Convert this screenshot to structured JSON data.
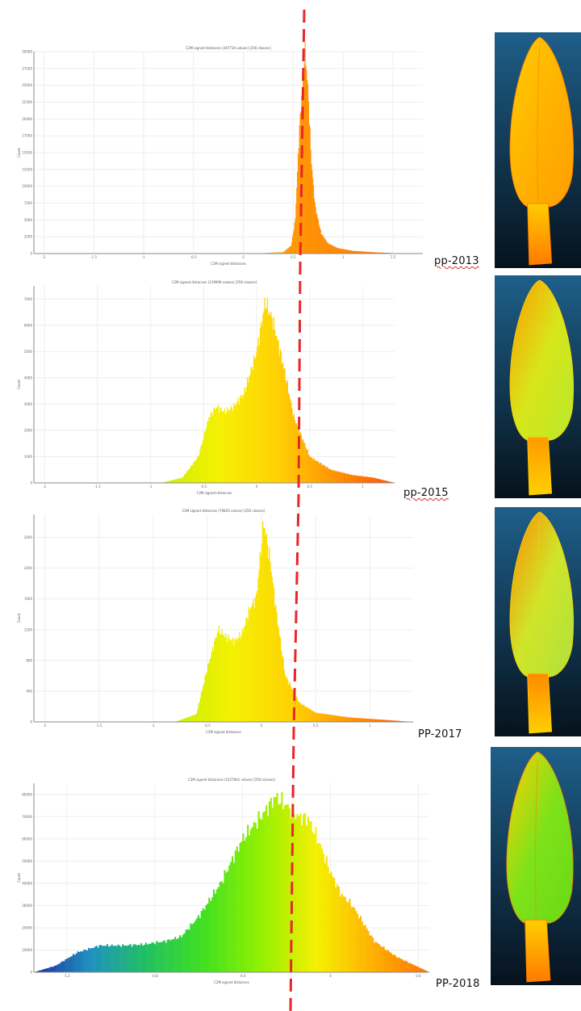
{
  "colors": {
    "leaf_bg_top": "#1e5f8a",
    "leaf_bg_bottom": "#06121c",
    "reference_line": "#e8262a"
  },
  "panels": [
    {
      "label": "pp-2013",
      "leaf_palette": [
        "#ffb300",
        "#ff9e00",
        "#ffcc00",
        "#ff7a00"
      ],
      "chart_data": {
        "type": "bar",
        "title": "C2M signed distances (347734 values) [256 classes]",
        "xlabel": "C2M signed distances",
        "ylabel": "Count",
        "xlim": [
          -2.1,
          1.8
        ],
        "ylim": [
          0,
          30000
        ],
        "xticks": [
          -2,
          -1.5,
          -1,
          -0.5,
          0,
          0.5,
          1,
          1.5
        ],
        "xtick_labels": [
          "-2",
          "-1.5",
          "-1",
          "-0.5",
          "0",
          "0.5",
          "1",
          "1.5"
        ],
        "yticks": [
          0,
          2500,
          5000,
          7500,
          10000,
          12500,
          15000,
          17500,
          20000,
          22500,
          25000,
          27500,
          30000
        ],
        "ytick_labels": [
          "0",
          "2500",
          "5000",
          "7500",
          "10000",
          "12500",
          "15000",
          "17500",
          "20000",
          "22500",
          "25000",
          "27500",
          "30000"
        ],
        "color_range": [
          -2.1,
          1.8
        ],
        "colorscale": [
          "#ffd400",
          "#ffc400",
          "#ffb000",
          "#ff8a00",
          "#ff6a00"
        ],
        "profile": {
          "x": [
            -0.2,
            0.1,
            0.4,
            0.48,
            0.52,
            0.56,
            0.6,
            0.62,
            0.65,
            0.68,
            0.72,
            0.78,
            0.85,
            0.95,
            1.1,
            1.3,
            1.6
          ],
          "y": [
            0,
            0,
            200,
            1200,
            5000,
            18000,
            27000,
            30000,
            24000,
            14000,
            7000,
            3000,
            1500,
            800,
            400,
            200,
            0
          ]
        }
      }
    },
    {
      "label": "pp-2015",
      "leaf_palette": [
        "#d7e61a",
        "#b8e82a",
        "#ff9a00",
        "#ffcf00"
      ],
      "chart_data": {
        "type": "bar",
        "title": "C2M signed distances (219909 values) [256 classes]",
        "xlabel": "C2M signed distances",
        "ylabel": "Count",
        "xlim": [
          -2.1,
          1.3
        ],
        "ylim": [
          0,
          7500
        ],
        "xticks": [
          -2,
          -1.5,
          -1,
          -0.5,
          0,
          0.5,
          1
        ],
        "xtick_labels": [
          "-2",
          "-1.5",
          "-1",
          "-0.5",
          "0",
          "0.5",
          "1"
        ],
        "yticks": [
          0,
          1000,
          2000,
          3000,
          4000,
          5000,
          6000,
          7000
        ],
        "ytick_labels": [
          "0",
          "1000",
          "2000",
          "3000",
          "4000",
          "5000",
          "6000",
          "7000"
        ],
        "color_range": [
          -0.9,
          1.3
        ],
        "colorscale": [
          "#c8f000",
          "#f5f000",
          "#ffd000",
          "#ff9000",
          "#ff5000"
        ],
        "profile": {
          "x": [
            -0.9,
            -0.7,
            -0.55,
            -0.45,
            -0.38,
            -0.3,
            -0.22,
            -0.12,
            0.0,
            0.08,
            0.15,
            0.25,
            0.35,
            0.5,
            0.7,
            0.9,
            1.1,
            1.3
          ],
          "y": [
            0,
            200,
            1000,
            2500,
            2900,
            2700,
            2900,
            3400,
            5000,
            6900,
            6200,
            4500,
            2500,
            1000,
            500,
            300,
            200,
            0
          ]
        }
      }
    },
    {
      "label": "PP-2017",
      "leaf_palette": [
        "#cfe52a",
        "#aee23a",
        "#ff8a00",
        "#ffcf00"
      ],
      "chart_data": {
        "type": "bar",
        "title": "C2M signed distances (79820 values) [256 classes]",
        "xlabel": "C2M signed distances",
        "ylabel": "Count",
        "xlim": [
          -2.1,
          1.4
        ],
        "ylim": [
          0,
          2700
        ],
        "xticks": [
          -2,
          -1.5,
          -1,
          -0.5,
          0,
          0.5,
          1
        ],
        "xtick_labels": [
          "-2",
          "-1.5",
          "-1",
          "-0.5",
          "0",
          "0.5",
          "1"
        ],
        "yticks": [
          0,
          400,
          800,
          1200,
          1600,
          2000,
          2400
        ],
        "ytick_labels": [
          "0",
          "400",
          "800",
          "1200",
          "1600",
          "2000",
          "2400"
        ],
        "color_range": [
          -0.8,
          1.4
        ],
        "colorscale": [
          "#c8f000",
          "#f5f000",
          "#ffd000",
          "#ff9000",
          "#ff5000"
        ],
        "profile": {
          "x": [
            -0.8,
            -0.6,
            -0.5,
            -0.4,
            -0.32,
            -0.25,
            -0.18,
            -0.1,
            -0.05,
            0.02,
            0.08,
            0.14,
            0.22,
            0.35,
            0.5,
            0.8,
            1.1,
            1.4
          ],
          "y": [
            0,
            100,
            700,
            1200,
            1100,
            1050,
            1150,
            1500,
            1600,
            2600,
            2100,
            1400,
            600,
            250,
            120,
            60,
            30,
            0
          ]
        }
      }
    },
    {
      "label": "PP-2018",
      "leaf_palette": [
        "#7ee21a",
        "#6ad914",
        "#ffcf00",
        "#ff7a00"
      ],
      "chart_data": {
        "type": "bar",
        "title": "C2M signed distances (3127941 values) [256 classes]",
        "xlabel": "C2M signed distances",
        "ylabel": "Count",
        "xlim": [
          -1.35,
          0.45
        ],
        "ylim": [
          0,
          85000
        ],
        "xticks": [
          -1.2,
          -0.8,
          -0.4,
          0,
          0.4
        ],
        "xtick_labels": [
          "-1.2",
          "-0.8",
          "-0.4",
          "0",
          "0.4"
        ],
        "yticks": [
          0,
          10000,
          20000,
          30000,
          40000,
          50000,
          60000,
          70000,
          80000
        ],
        "ytick_labels": [
          "0",
          "10000",
          "20000",
          "30000",
          "40000",
          "50000",
          "60000",
          "70000",
          "80000"
        ],
        "color_range": [
          -1.35,
          0.45
        ],
        "colorscale": [
          "#1a2fa0",
          "#1e90c0",
          "#20c060",
          "#40e020",
          "#90f000",
          "#f5f000",
          "#ffb000",
          "#ff7000"
        ],
        "profile": {
          "x": [
            -1.35,
            -1.25,
            -1.15,
            -1.05,
            -0.95,
            -0.85,
            -0.75,
            -0.68,
            -0.6,
            -0.5,
            -0.4,
            -0.3,
            -0.25,
            -0.2,
            -0.15,
            -0.1,
            -0.05,
            0.0,
            0.05,
            0.1,
            0.15,
            0.2,
            0.3,
            0.45
          ],
          "y": [
            0,
            3000,
            9000,
            12000,
            12000,
            12500,
            14000,
            16000,
            25000,
            40000,
            60000,
            72000,
            79000,
            75000,
            70000,
            69000,
            58000,
            45000,
            35000,
            30000,
            22000,
            14000,
            7000,
            0
          ]
        }
      }
    }
  ]
}
